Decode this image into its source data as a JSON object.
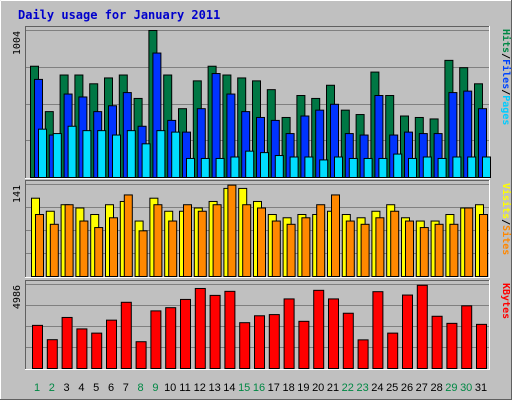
{
  "chart_data": [
    {
      "type": "bar",
      "title": "Daily usage for January 2011",
      "categories": [
        "1",
        "2",
        "3",
        "4",
        "5",
        "6",
        "7",
        "8",
        "9",
        "10",
        "11",
        "12",
        "13",
        "14",
        "15",
        "16",
        "17",
        "18",
        "19",
        "20",
        "21",
        "22",
        "23",
        "24",
        "25",
        "26",
        "27",
        "28",
        "29",
        "30",
        "31"
      ],
      "weekend_days": [
        "1",
        "2",
        "8",
        "9",
        "15",
        "16",
        "22",
        "23",
        "29",
        "30"
      ],
      "ylim": [
        0,
        1004
      ],
      "ymax_label": "1004",
      "legend": [
        {
          "label": "Pages",
          "color": "#00ccff"
        },
        {
          "label": "/",
          "color": "#000000"
        },
        {
          "label": "Files",
          "color": "#0044ff"
        },
        {
          "label": "/",
          "color": "#000000"
        },
        {
          "label": "Hits",
          "color": "#008844"
        }
      ],
      "series": [
        {
          "name": "Hits",
          "color": "#007744",
          "values": [
            760,
            450,
            700,
            700,
            640,
            680,
            700,
            540,
            1004,
            700,
            470,
            660,
            760,
            700,
            680,
            660,
            600,
            410,
            560,
            540,
            630,
            460,
            430,
            720,
            560,
            420,
            410,
            400,
            800,
            750,
            640
          ]
        },
        {
          "name": "Files",
          "color": "#0033ff",
          "values": [
            670,
            290,
            570,
            550,
            450,
            490,
            580,
            350,
            850,
            390,
            310,
            470,
            710,
            570,
            450,
            410,
            390,
            300,
            420,
            460,
            500,
            300,
            290,
            560,
            290,
            310,
            300,
            300,
            580,
            590,
            470
          ]
        },
        {
          "name": "Pages",
          "color": "#00ddff",
          "values": [
            330,
            300,
            350,
            320,
            320,
            290,
            320,
            230,
            320,
            310,
            130,
            130,
            130,
            140,
            180,
            170,
            150,
            140,
            140,
            120,
            140,
            130,
            130,
            130,
            160,
            130,
            140,
            130,
            140,
            140,
            140
          ]
        }
      ]
    },
    {
      "type": "bar",
      "ylim": [
        0,
        141
      ],
      "ymax_label": "141",
      "legend": [
        {
          "label": "Sites",
          "color": "#ff8800"
        },
        {
          "label": "/",
          "color": "#000000"
        },
        {
          "label": "Visits",
          "color": "#ffff00"
        }
      ],
      "series": [
        {
          "name": "Visits",
          "color": "#ffff00",
          "values": [
            120,
            100,
            110,
            105,
            95,
            110,
            115,
            85,
            120,
            100,
            100,
            105,
            115,
            135,
            135,
            115,
            95,
            90,
            95,
            95,
            100,
            95,
            90,
            100,
            110,
            90,
            85,
            85,
            95,
            105,
            110
          ]
        },
        {
          "name": "Sites",
          "color": "#ff8800",
          "values": [
            95,
            80,
            110,
            85,
            75,
            90,
            125,
            70,
            110,
            85,
            110,
            100,
            110,
            140,
            110,
            105,
            85,
            80,
            90,
            110,
            125,
            85,
            80,
            90,
            100,
            85,
            75,
            80,
            80,
            105,
            95
          ]
        }
      ]
    },
    {
      "type": "bar",
      "ylim": [
        0,
        4986
      ],
      "ymax_label": "4986",
      "legend": [
        {
          "label": "KBytes",
          "color": "#ff0000"
        }
      ],
      "series": [
        {
          "name": "KBytes",
          "color": "#ff0000",
          "values": [
            2560,
            1710,
            3030,
            2350,
            2100,
            2870,
            3930,
            1590,
            3420,
            3610,
            4100,
            4750,
            4340,
            4580,
            2720,
            3130,
            3200,
            4130,
            2800,
            4640,
            4130,
            3280,
            1700,
            4560,
            2100,
            4360,
            4940,
            3100,
            2680,
            3720,
            2620
          ]
        }
      ]
    }
  ]
}
